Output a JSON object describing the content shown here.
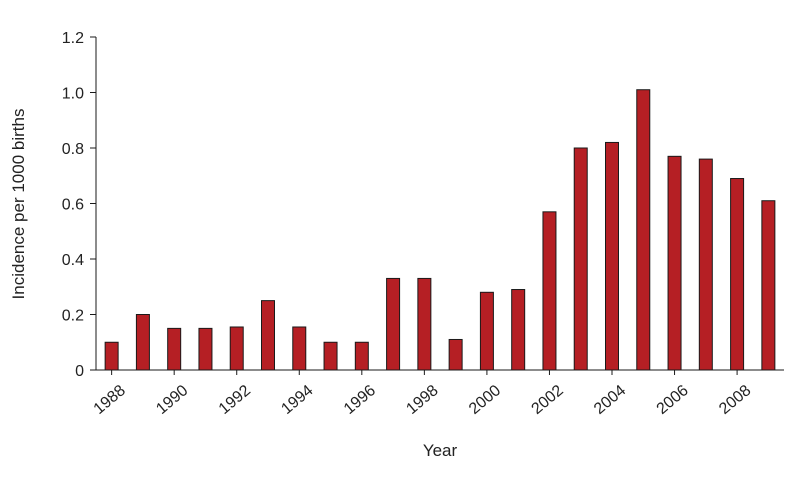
{
  "chart_data": {
    "type": "bar",
    "title": "",
    "xlabel": "Year",
    "ylabel": "Incidence per 1000 births",
    "categories": [
      "1988",
      "1989",
      "1990",
      "1991",
      "1992",
      "1993",
      "1994",
      "1995",
      "1996",
      "1997",
      "1998",
      "1999",
      "2000",
      "2001",
      "2002",
      "2003",
      "2004",
      "2005",
      "2006",
      "2007",
      "2008",
      "2009"
    ],
    "x_tick_labels": [
      "1988",
      "1990",
      "1992",
      "1994",
      "1996",
      "1998",
      "2000",
      "2002",
      "2004",
      "2006",
      "2008"
    ],
    "values": [
      0.1,
      0.2,
      0.15,
      0.15,
      0.155,
      0.25,
      0.155,
      0.1,
      0.1,
      0.33,
      0.33,
      0.11,
      0.28,
      0.29,
      0.57,
      0.8,
      0.82,
      1.01,
      0.77,
      0.76,
      0.69,
      0.61
    ],
    "ylim": [
      0,
      1.2
    ],
    "y_ticks": [
      "0",
      "0.2",
      "0.4",
      "0.6",
      "0.8",
      "1.0",
      "1.2"
    ],
    "grid": false,
    "bar_color": "#b51f24"
  }
}
